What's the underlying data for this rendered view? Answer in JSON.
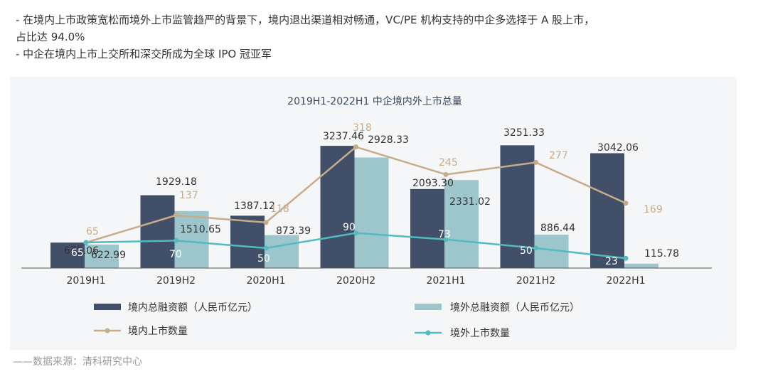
{
  "notes": [
    "- 在境内上市政策宽松而境外上市监管趋严的背景下，境内退出渠道相对畅通，VC/PE 机构支持的中企多选择于 A 股上市，",
    "占比达 94.0%",
    "- 中企在境内上市上交所和深交所成为全球 IPO 冠亚军"
  ],
  "source": "——数据来源：清科研究中心",
  "chart_data": {
    "type": "bar",
    "title": "2019H1-2022H1 中企境内外上市总量",
    "categories": [
      "2019H1",
      "2019H2",
      "2020H1",
      "2020H2",
      "2021H1",
      "2021H2",
      "2022H1"
    ],
    "series": [
      {
        "name": "境内总融资额（人民币亿元）",
        "type": "bar",
        "color": "#415068",
        "values": [
          675.06,
          1929.18,
          1387.12,
          3237.46,
          2093.3,
          3251.33,
          3042.06
        ],
        "labels": [
          "675.06",
          "1929.18",
          "1387.12",
          "3237.46",
          "2093.30",
          "3251.33",
          "3042.06"
        ]
      },
      {
        "name": "境外总融资额（人民币亿元）",
        "type": "bar",
        "color": "#9dc6cc",
        "values": [
          622.99,
          1510.65,
          873.39,
          2928.33,
          2331.02,
          886.44,
          115.78
        ],
        "labels": [
          "622.99",
          "1510.65",
          "873.39",
          "2928.33",
          "2331.02",
          "886.44",
          "115.78"
        ]
      },
      {
        "name": "境内上市数量",
        "type": "line",
        "color": "#c8ac8a",
        "values": [
          65,
          137,
          118,
          318,
          245,
          277,
          169
        ],
        "labels": [
          "65",
          "137",
          "118",
          "318",
          "245",
          "277",
          "169"
        ]
      },
      {
        "name": "境外上市数量",
        "type": "line",
        "color": "#50bcc2",
        "values": [
          65,
          70,
          50,
          90,
          73,
          50,
          23
        ],
        "labels": [
          "65",
          "70",
          "50",
          "90",
          "73",
          "50",
          "23"
        ]
      }
    ],
    "legend": "bottom",
    "grid": false
  }
}
